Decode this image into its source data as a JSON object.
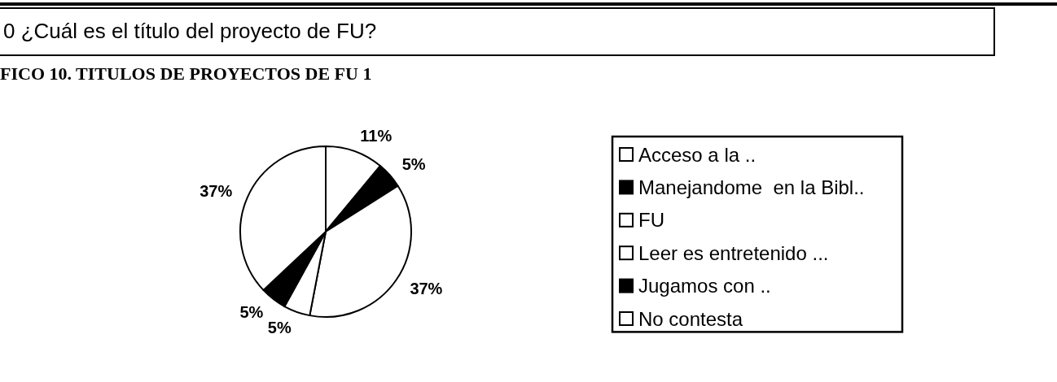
{
  "chart_data": {
    "type": "pie",
    "title": "FICO 10. TITULOS DE PROYECTOS DE FU 1",
    "annotations": [
      "0 ¿Cuál es el título del proyecto de FU?"
    ],
    "categories": [
      "Acceso a la ..",
      "Manejandome  en la Bibl..",
      "FU",
      "Leer es entretenido ...",
      "Jugamos con ..",
      "No contesta"
    ],
    "values": [
      11,
      5,
      37,
      5,
      5,
      37
    ],
    "colors": [
      "#ffffff",
      "#000000",
      "#ffffff",
      "#ffffff",
      "#000000",
      "#ffffff"
    ],
    "value_labels": [
      "11%",
      "5%",
      "37%",
      "5%",
      "5%",
      "37%"
    ],
    "legend": "right"
  }
}
